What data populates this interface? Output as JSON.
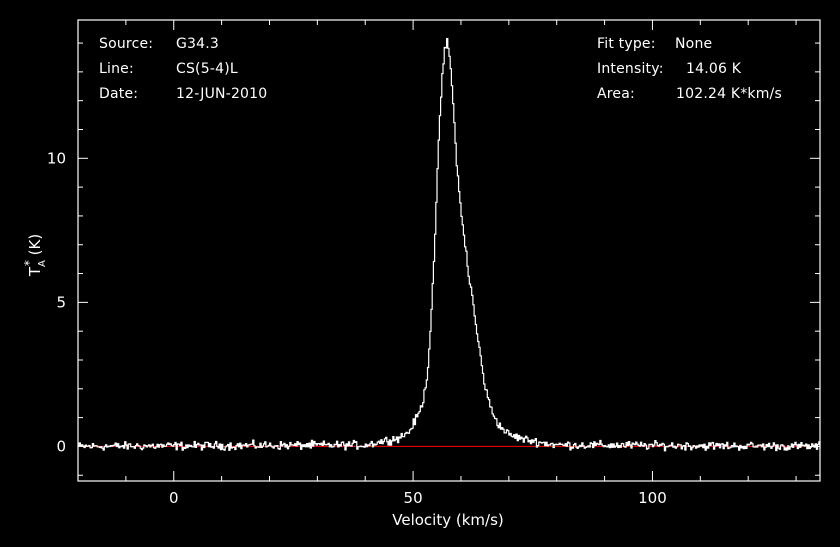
{
  "header_left": {
    "source_label": "Source:",
    "source_value": "G34.3",
    "line_label": "Line:",
    "line_value": "CS(5-4)L",
    "date_label": "Date:",
    "date_value": "12-JUN-2010"
  },
  "header_right": {
    "fit_label": "Fit type:",
    "fit_value": "None",
    "intensity_label": "Intensity:",
    "intensity_value": "14.06 K",
    "area_label": "Area:",
    "area_value": "102.24 K*km/s"
  },
  "colors": {
    "background": "#000000",
    "axes": "#ffffff",
    "spectrum": "#ffffff",
    "baseline": "#ff0000"
  },
  "chart_data": {
    "type": "line",
    "xlabel": "Velocity (km/s)",
    "ylabel": "T_A^* (K)",
    "xlim": [
      -20,
      135
    ],
    "ylim": [
      -1.2,
      14.8
    ],
    "xticks": [
      0,
      50,
      100
    ],
    "yticks": [
      0,
      5,
      10
    ],
    "baseline_y": 0,
    "series": [
      {
        "x": [
          -20,
          40,
          44,
          47,
          49,
          50,
          51,
          52,
          52.5,
          53,
          53.5,
          54,
          54.5,
          55,
          55.5,
          56,
          56.5,
          57,
          57.5,
          58,
          58.5,
          59,
          59.5,
          60,
          60.5,
          61,
          61.5,
          62,
          62.5,
          63,
          64,
          65,
          66,
          67,
          68,
          70,
          73,
          77,
          80,
          135
        ],
        "y": [
          0,
          0.05,
          0.2,
          0.3,
          0.5,
          0.8,
          1.1,
          1.6,
          2.1,
          2.8,
          4.0,
          5.7,
          7.3,
          9.5,
          11.5,
          12.9,
          13.7,
          14.06,
          13.6,
          12.5,
          11.2,
          9.9,
          8.8,
          8.0,
          7.3,
          6.8,
          5.8,
          5.5,
          4.9,
          4.2,
          3.1,
          2.0,
          1.4,
          1.0,
          0.7,
          0.4,
          0.25,
          0.12,
          0.05,
          0
        ]
      }
    ]
  }
}
